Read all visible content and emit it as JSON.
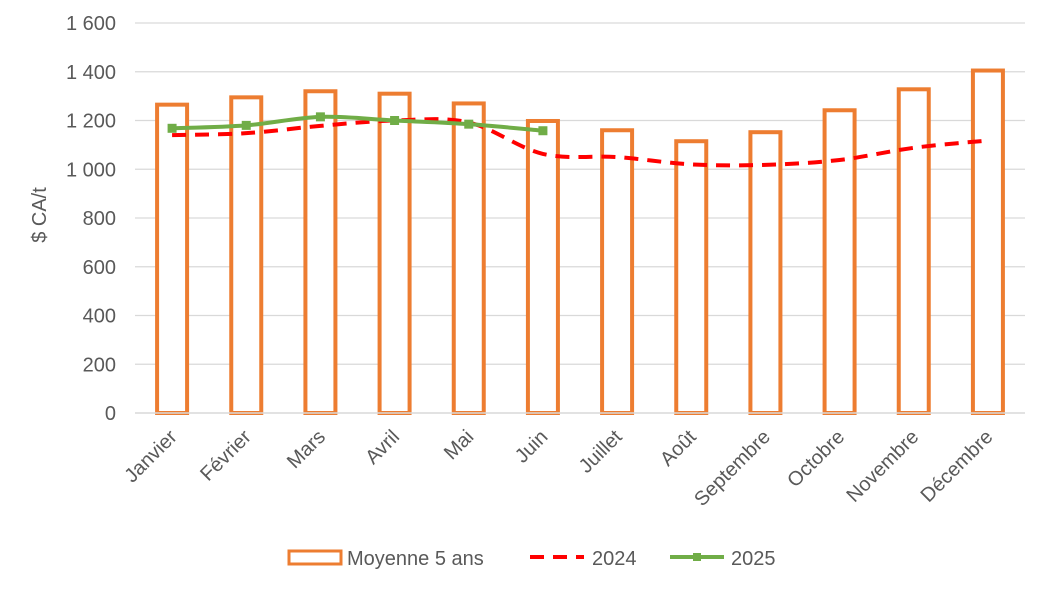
{
  "chart_data": {
    "type": "bar",
    "categories": [
      "Janvier",
      "Février",
      "Mars",
      "Avril",
      "Mai",
      "Juin",
      "Juillet",
      "Août",
      "Septembre",
      "Octobre",
      "Novembre",
      "Décembre"
    ],
    "ylabel": "$ CA/t",
    "ylim": [
      0,
      1600
    ],
    "yticks": [
      "0",
      "200",
      "400",
      "600",
      "800",
      "1 000",
      "1 200",
      "1 400",
      "1 600"
    ],
    "grid": true,
    "legend_position": "bottom",
    "series": [
      {
        "name": "Moyenne 5 ans",
        "type": "bar",
        "style": "outline",
        "color": "#ED7D31",
        "values": [
          1265,
          1295,
          1320,
          1310,
          1270,
          1198,
          1160,
          1115,
          1152,
          1242,
          1328,
          1405
        ]
      },
      {
        "name": "2024",
        "type": "line",
        "style": "dashed",
        "color": "#FF0000",
        "values": [
          1140,
          1148,
          1178,
          1200,
          1192,
          1063,
          1050,
          1020,
          1018,
          1038,
          1088,
          1118
        ]
      },
      {
        "name": "2025",
        "type": "line",
        "style": "solid-markers",
        "color": "#70AD47",
        "values": [
          1168,
          1180,
          1215,
          1200,
          1185,
          1158,
          null,
          null,
          null,
          null,
          null,
          null
        ]
      }
    ]
  }
}
